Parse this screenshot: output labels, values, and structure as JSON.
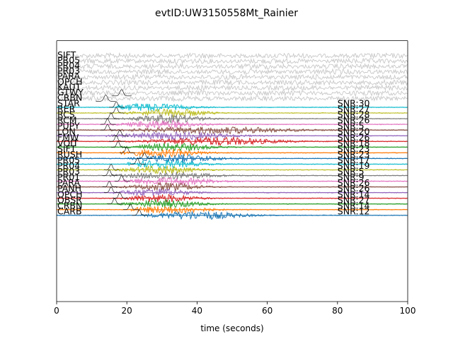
{
  "chart_data": {
    "type": "line",
    "title": "evtID:UW3150558Mt_Rainier",
    "xlabel": "time (seconds)",
    "ylabel": "",
    "xlim": [
      0,
      100
    ],
    "xticks": [
      "0",
      "20",
      "40",
      "60",
      "80",
      "100"
    ],
    "grid": false,
    "background_traces": {
      "color": "#c8c8c8",
      "stations": [
        "SIFT",
        "PR05",
        "PR04",
        "PR03",
        "PARA",
        "OPCH",
        "KAUT",
        "GTWY",
        "CRBN"
      ]
    },
    "arrival_picks": [
      {
        "near": "GTWY",
        "time": 18.5
      },
      {
        "near": "CRBN",
        "time": 14
      }
    ],
    "series": [
      {
        "name": "STAR",
        "snr": "SNR:30",
        "color": "#17becf",
        "pick": 17,
        "onset": 17,
        "center": 26,
        "width": 10,
        "amp": 0.9
      },
      {
        "name": "RER",
        "snr": "SNR:27",
        "color": "#bcbd22",
        "pick": 17,
        "onset": 17,
        "center": 33,
        "width": 9,
        "amp": 0.9
      },
      {
        "name": "RCS",
        "snr": "SNR:28",
        "color": "#7f7f7f",
        "pick": 15.5,
        "onset": 16,
        "center": 32,
        "width": 9,
        "amp": 0.9
      },
      {
        "name": "RCM",
        "snr": "SNR:26",
        "color": "#e377c2",
        "pick": 14.5,
        "onset": 15,
        "center": 30,
        "width": 9,
        "amp": 0.9
      },
      {
        "name": "PUPY",
        "snr": "SNR:5",
        "color": "#8c564b",
        "pick": 14.5,
        "onset": 15,
        "center": 45,
        "width": 20,
        "amp": 0.75
      },
      {
        "name": "LON",
        "snr": "SNR:20",
        "color": "#9467bd",
        "pick": 18,
        "onset": 14,
        "center": 34,
        "width": 14,
        "amp": 0.85
      },
      {
        "name": "FMW",
        "snr": "SNR:26",
        "color": "#d62728",
        "pick": 17,
        "onset": 17,
        "center": 45,
        "width": 16,
        "amp": 0.9
      },
      {
        "name": "VOIT",
        "snr": "SNR:18",
        "color": "#2ca02c",
        "pick": 17.5,
        "onset": 18,
        "center": 33,
        "width": 10,
        "amp": 0.85
      },
      {
        "name": "SIFT",
        "snr": "SNR:23",
        "color": "#ff7f0e",
        "pick": 20,
        "onset": 18,
        "center": 30,
        "width": 10,
        "amp": 0.85
      },
      {
        "name": "RUSH",
        "snr": "SNR:23",
        "color": "#1f77b4",
        "pick": 25,
        "onset": 20,
        "center": 35,
        "width": 10,
        "amp": 0.9
      },
      {
        "name": "PR05",
        "snr": "SNR:17",
        "color": "#17becf",
        "pick": 23,
        "onset": 20,
        "center": 30,
        "width": 10,
        "amp": 0.85
      },
      {
        "name": "PR04",
        "snr": "SNR:19",
        "color": "#bcbd22",
        "pick": 15.5,
        "onset": 16,
        "center": 30,
        "width": 9,
        "amp": 0.85
      },
      {
        "name": "PR03",
        "snr": "SNR:5",
        "color": "#7f7f7f",
        "pick": 15,
        "onset": 15,
        "center": 32,
        "width": 12,
        "amp": 0.8
      },
      {
        "name": "PR01",
        "snr": "SNR:9",
        "color": "#e377c2",
        "pick": 18.5,
        "onset": 19,
        "center": 32,
        "width": 12,
        "amp": 0.85
      },
      {
        "name": "PARA",
        "snr": "SNR:26",
        "color": "#8c564b",
        "pick": 15,
        "onset": 15,
        "center": 31,
        "width": 9,
        "amp": 0.85
      },
      {
        "name": "PANH",
        "snr": "SNR:26",
        "color": "#9467bd",
        "pick": 15.5,
        "onset": 16,
        "center": 28,
        "width": 9,
        "amp": 0.85
      },
      {
        "name": "OPCH",
        "snr": "SNR:14",
        "color": "#d62728",
        "pick": 18,
        "onset": 18,
        "center": 30,
        "width": 9,
        "amp": 0.85
      },
      {
        "name": "OBSR",
        "snr": "SNR:27",
        "color": "#2ca02c",
        "pick": 16.5,
        "onset": 17,
        "center": 31,
        "width": 9,
        "amp": 0.9
      },
      {
        "name": "CRBN",
        "snr": "SNR:14",
        "color": "#ff7f0e",
        "pick": 21,
        "onset": 21,
        "center": 32,
        "width": 10,
        "amp": 0.85
      },
      {
        "name": "CARB",
        "snr": "SNR:12",
        "color": "#1f77b4",
        "pick": 23.5,
        "onset": 24,
        "center": 40,
        "width": 12,
        "amp": 0.9
      }
    ]
  }
}
